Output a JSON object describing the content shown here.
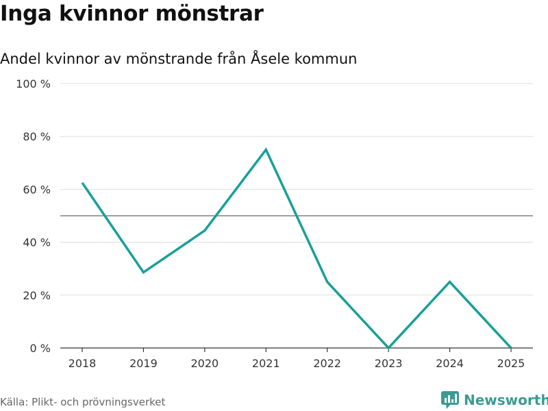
{
  "title": "Inga kvinnor mönstrar",
  "subtitle": "Andel kvinnor av mönstrande från Åsele kommun",
  "source": "Källa: Plikt- och prövningsverket",
  "brand": {
    "name": "Newsworthy",
    "icon": "newsworthy-logo-icon",
    "color": "#3c9b93"
  },
  "colors": {
    "line": "#17a097",
    "grid": "#dddddd",
    "reference": "#666666",
    "axis": "#333333"
  },
  "chart_data": {
    "type": "line",
    "title": "Inga kvinnor mönstrar",
    "subtitle": "Andel kvinnor av mönstrande från Åsele kommun",
    "xlabel": "",
    "ylabel": "",
    "x": [
      "2018",
      "2019",
      "2020",
      "2021",
      "2022",
      "2023",
      "2024",
      "2025"
    ],
    "series": [
      {
        "name": "Andel kvinnor",
        "values": [
          62.5,
          28.6,
          44.4,
          75.0,
          25.0,
          0.0,
          25.0,
          0.0
        ]
      }
    ],
    "ylim": [
      0,
      100
    ],
    "yticks": [
      0,
      20,
      40,
      60,
      80,
      100
    ],
    "ytick_labels": [
      "0 %",
      "20 %",
      "40 %",
      "60 %",
      "80 %",
      "100 %"
    ],
    "reference_line": 50,
    "grid": true,
    "legend": "none"
  }
}
